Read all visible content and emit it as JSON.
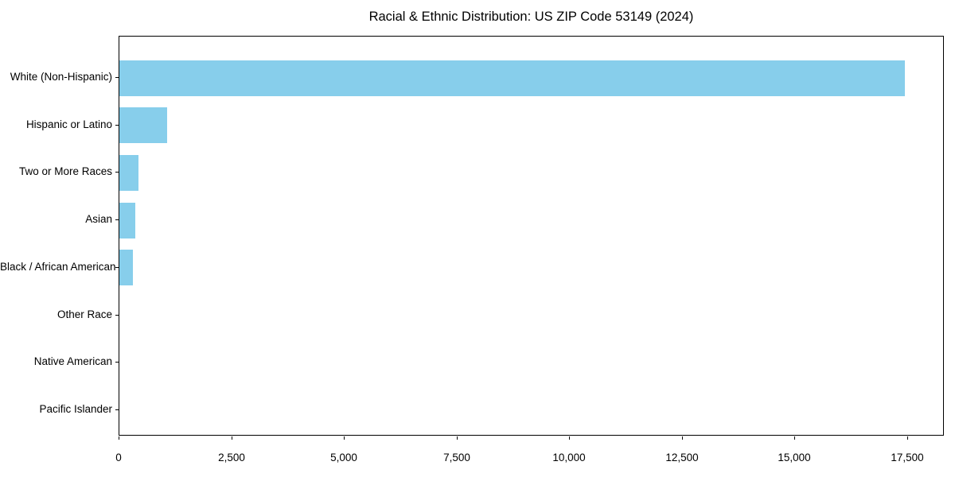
{
  "chart_data": {
    "type": "bar",
    "orientation": "horizontal",
    "title": "Racial & Ethnic Distribution: US ZIP Code 53149 (2024)",
    "categories": [
      "White (Non-Hispanic)",
      "Hispanic or Latino",
      "Two or More Races",
      "Asian",
      "Black / African American",
      "Other Race",
      "Native American",
      "Pacific Islander"
    ],
    "values": [
      17440,
      1060,
      440,
      370,
      310,
      15,
      10,
      5
    ],
    "bar_color": "#87CEEB",
    "background_color": "#FFFFFF",
    "spine_color": "#000000",
    "text_color": "#000000",
    "xlabel": "",
    "ylabel": "",
    "xlim": [
      0,
      18320
    ],
    "x_ticks": [
      0,
      2500,
      5000,
      7500,
      10000,
      12500,
      15000,
      17500
    ],
    "x_tick_labels": [
      "0",
      "2,500",
      "5,000",
      "7,500",
      "10,000",
      "12,500",
      "15,000",
      "17,500"
    ],
    "grid": false,
    "legend": "none"
  }
}
